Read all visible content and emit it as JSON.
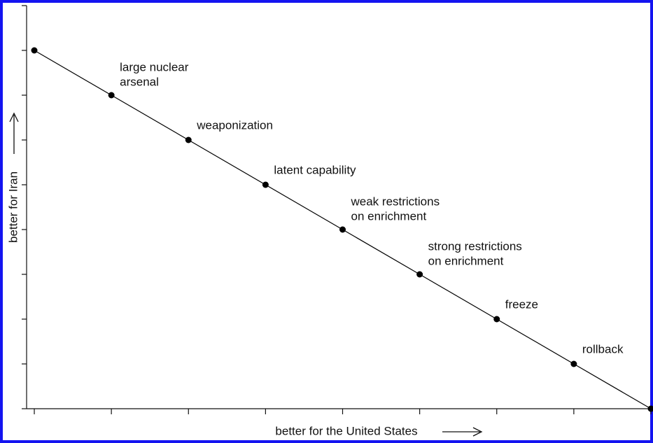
{
  "chart_data": {
    "type": "line",
    "x_label": "better for the United States",
    "y_label": "better for Iran",
    "x": [
      0,
      1,
      2,
      3,
      4,
      5,
      6,
      7,
      8
    ],
    "values": [
      8,
      7,
      6,
      5,
      4,
      3,
      2,
      1,
      0
    ],
    "point_labels": [
      null,
      [
        "large nuclear",
        "arsenal"
      ],
      [
        "weaponization"
      ],
      [
        "latent capability"
      ],
      [
        "weak restrictions",
        "on enrichment"
      ],
      [
        "strong restrictions",
        "on enrichment"
      ],
      [
        "freeze"
      ],
      [
        "rollback"
      ],
      null
    ],
    "color": "#000000",
    "xlim": [
      -0.1,
      8
    ],
    "xticks": [
      0,
      1,
      2,
      3,
      4,
      5,
      6,
      7,
      8
    ],
    "ylim": [
      0,
      9
    ],
    "yticks": [
      0,
      1,
      2,
      3,
      4,
      5,
      6,
      7,
      8,
      9
    ],
    "grid": false
  }
}
